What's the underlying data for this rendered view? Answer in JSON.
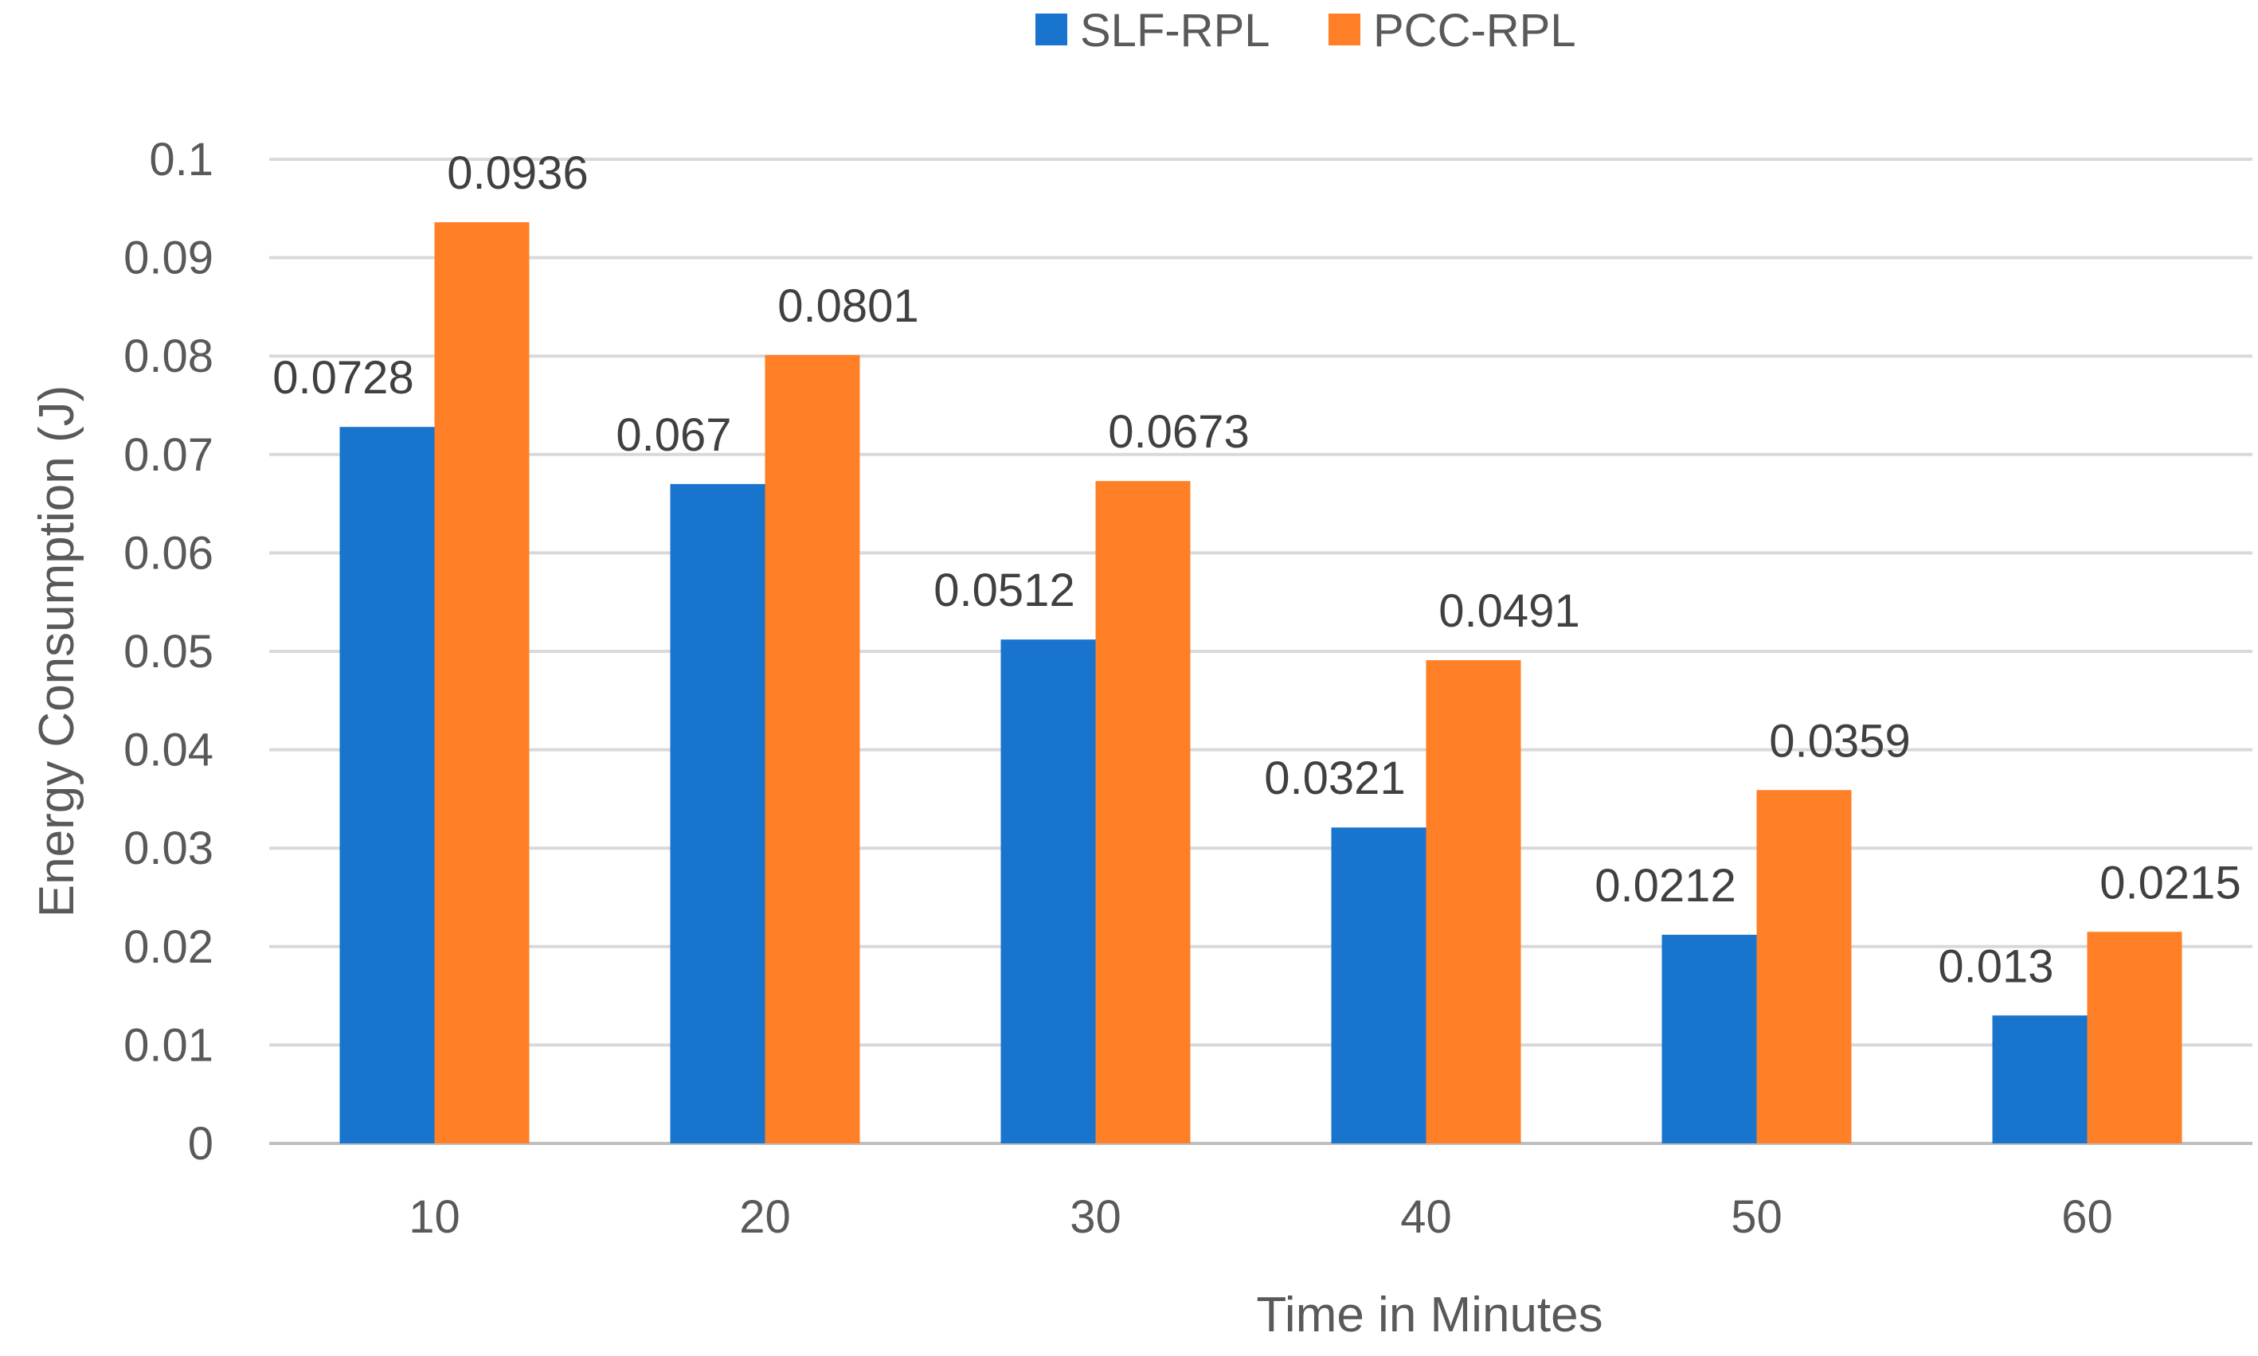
{
  "chart_data": {
    "type": "bar",
    "categories": [
      "10",
      "20",
      "30",
      "40",
      "50",
      "60"
    ],
    "series": [
      {
        "name": "SLF-RPL",
        "color": "#1874CD",
        "values": [
          0.0728,
          0.067,
          0.0512,
          0.0321,
          0.0212,
          0.013
        ],
        "labels": [
          "0.0728",
          "0.067",
          "0.0512",
          "0.0321",
          "0.0212",
          "0.013"
        ]
      },
      {
        "name": "PCC-RPL",
        "color": "#FF7F27",
        "values": [
          0.0936,
          0.0801,
          0.0673,
          0.0491,
          0.0359,
          0.0215
        ],
        "labels": [
          "0.0936",
          "0.0801",
          "0.0673",
          "0.0491",
          "0.0359",
          "0.0215"
        ]
      }
    ],
    "yticks": [
      "0",
      "0.01",
      "0.02",
      "0.03",
      "0.04",
      "0.05",
      "0.06",
      "0.07",
      "0.08",
      "0.09",
      "0.1"
    ],
    "ylim": [
      0,
      0.1
    ],
    "xlabel": "Time in Minutes",
    "ylabel": "Energy Consumption (J)",
    "title": "",
    "grid": true,
    "legend_position": "top-center"
  }
}
